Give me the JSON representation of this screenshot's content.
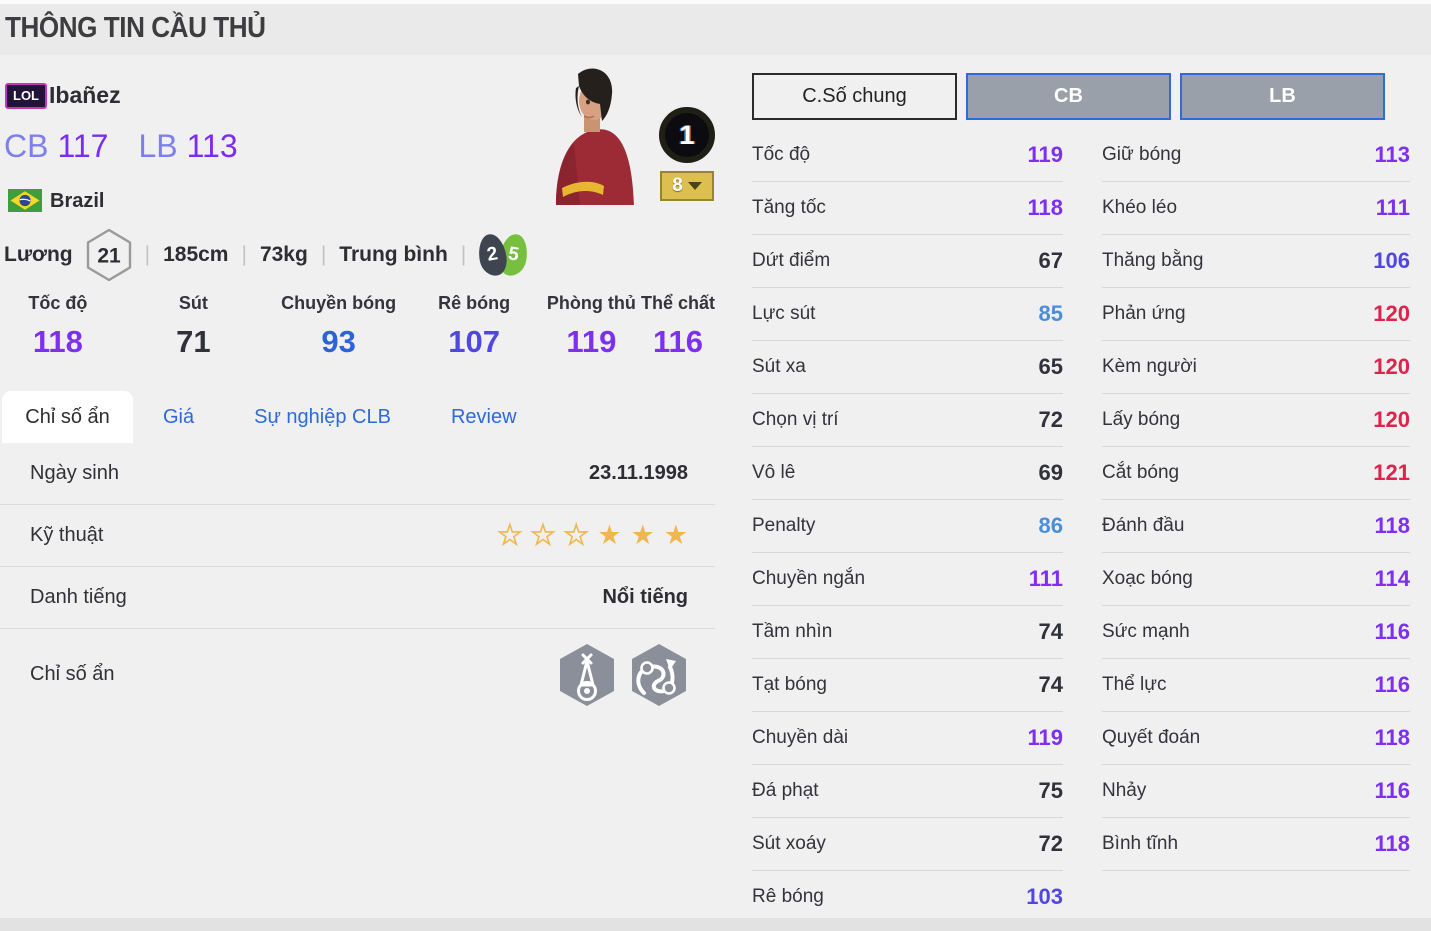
{
  "page": {
    "title": "THÔNG TIN CẦU THỦ"
  },
  "player": {
    "season_badge": "LOL",
    "name": "Ibañez",
    "positions": [
      {
        "pos": "CB",
        "rating": "117"
      },
      {
        "pos": "LB",
        "rating": "113"
      }
    ],
    "nation": "Brazil",
    "salary_label": "Lương",
    "salary": "21",
    "height": "185cm",
    "weight": "73kg",
    "body_type": "Trung bình",
    "separator": "|",
    "left_foot": "2",
    "right_foot": "5",
    "upgrade_level": "1",
    "level_select": "8"
  },
  "summary_stats": [
    {
      "label": "Tốc độ",
      "value": 118
    },
    {
      "label": "Sút",
      "value": 71
    },
    {
      "label": "Chuyền bóng",
      "value": 93
    },
    {
      "label": "Rê bóng",
      "value": 107
    },
    {
      "label": "Phòng thủ",
      "value": 119
    },
    {
      "label": "Thể chất",
      "value": 116
    }
  ],
  "tabs": [
    {
      "label": "Chỉ số ẩn",
      "active": true
    },
    {
      "label": "Giá",
      "active": false
    },
    {
      "label": "Sự nghiệp CLB",
      "active": false
    },
    {
      "label": "Review",
      "active": false
    }
  ],
  "info_rows": {
    "birth_label": "Ngày sinh",
    "birth_value": "23.11.1998",
    "skill_label": "Kỹ thuật",
    "skill_stars_total": 6,
    "skill_stars_filled": 3,
    "fame_label": "Danh tiếng",
    "fame_value": "Nổi tiếng",
    "hidden_label": "Chỉ số ẩn"
  },
  "stat_buttons": [
    {
      "label": "C.Số chung",
      "active": true
    },
    {
      "label": "CB",
      "active": false
    },
    {
      "label": "LB",
      "active": false
    }
  ],
  "detail_stats_left": [
    {
      "label": "Tốc độ",
      "value": 119
    },
    {
      "label": "Tăng tốc",
      "value": 118
    },
    {
      "label": "Dứt điểm",
      "value": 67
    },
    {
      "label": "Lực sút",
      "value": 85
    },
    {
      "label": "Sút xa",
      "value": 65
    },
    {
      "label": "Chọn vị trí",
      "value": 72
    },
    {
      "label": "Vô lê",
      "value": 69
    },
    {
      "label": "Penalty",
      "value": 86
    },
    {
      "label": "Chuyền ngắn",
      "value": 111
    },
    {
      "label": "Tầm nhìn",
      "value": 74
    },
    {
      "label": "Tạt bóng",
      "value": 74
    },
    {
      "label": "Chuyền dài",
      "value": 119
    },
    {
      "label": "Đá phạt",
      "value": 75
    },
    {
      "label": "Sút xoáy",
      "value": 72
    },
    {
      "label": "Rê bóng",
      "value": 103
    }
  ],
  "detail_stats_right": [
    {
      "label": "Giữ bóng",
      "value": 113
    },
    {
      "label": "Khéo léo",
      "value": 111
    },
    {
      "label": "Thăng bằng",
      "value": 106
    },
    {
      "label": "Phản ứng",
      "value": 120
    },
    {
      "label": "Kèm người",
      "value": 120
    },
    {
      "label": "Lấy bóng",
      "value": 120
    },
    {
      "label": "Cắt bóng",
      "value": 121
    },
    {
      "label": "Đánh đầu",
      "value": 118
    },
    {
      "label": "Xoạc bóng",
      "value": 114
    },
    {
      "label": "Sức mạnh",
      "value": 116
    },
    {
      "label": "Thể lực",
      "value": 116
    },
    {
      "label": "Quyết đoán",
      "value": 118
    },
    {
      "label": "Nhảy",
      "value": 116
    },
    {
      "label": "Bình tĩnh",
      "value": 118
    }
  ],
  "icons": {
    "season_badge": "lol-season-badge",
    "nation_flag": "brazil-flag-icon",
    "salary": "hexagon-outline-icon",
    "left_foot": "dark-footprint-icon",
    "right_foot": "green-footprint-icon",
    "level_dropdown": "caret-down-icon",
    "skill_star": "star-icon",
    "hidden_trait_1": "beacon-ball-hexagon-icon",
    "hidden_trait_2": "dribble-path-hexagon-icon"
  },
  "colors": {
    "tier_dark": "#31313b",
    "tier_light_blue": "#4a8ed8",
    "tier_blue": "#2d63d9",
    "tier_indigo": "#5046e4",
    "tier_purple": "#7d2ff2",
    "tier_red": "#e0234c",
    "tab_link_blue": "#2e6ad9",
    "position_letter": "#7d80ec",
    "foot_dark": "#3e4450",
    "foot_green": "#76bf3f",
    "level_gold": "#dcbf50"
  }
}
